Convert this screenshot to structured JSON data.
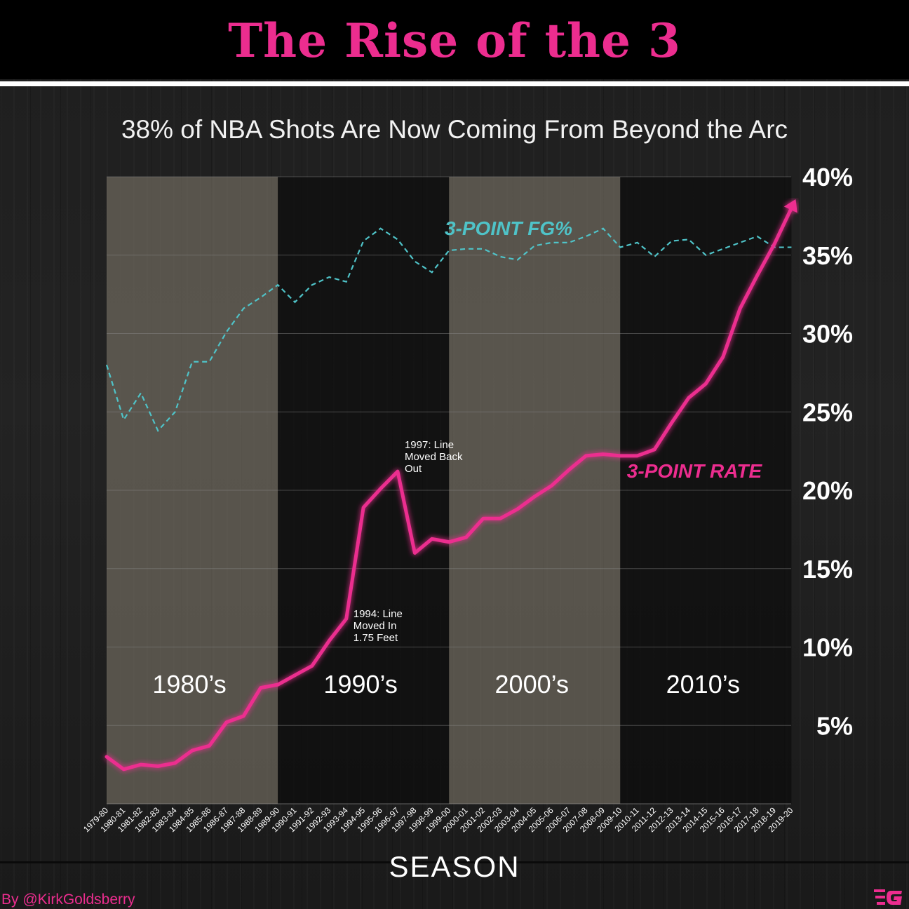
{
  "header": {
    "title": "The Rise of the 3",
    "subtitle": "38% of NBA Shots Are Now Coming From Beyond the Arc"
  },
  "footer": {
    "credit": "By @KirkGoldsberry",
    "logo": "g-logo-icon"
  },
  "colors": {
    "accent": "#ec2d8f",
    "fg_line": "#4fc3c8",
    "light_band": "#7a7467",
    "dark_band": "#0d0d0d",
    "background": "#1e1e1e"
  },
  "chart_data": {
    "type": "line",
    "title": "",
    "xlabel": "SEASON",
    "ylabel": "",
    "ylim": [
      0,
      40
    ],
    "y_ticks": [
      {
        "value": 5,
        "label": "5%"
      },
      {
        "value": 10,
        "label": "10%"
      },
      {
        "value": 15,
        "label": "15%"
      },
      {
        "value": 20,
        "label": "20%"
      },
      {
        "value": 25,
        "label": "25%"
      },
      {
        "value": 30,
        "label": "30%"
      },
      {
        "value": 35,
        "label": "35%"
      },
      {
        "value": 40,
        "label": "40%"
      }
    ],
    "y_axis_side": "right",
    "grid": true,
    "categories": [
      "1979-80",
      "1980-81",
      "1981-82",
      "1982-83",
      "1983-84",
      "1984-85",
      "1985-86",
      "1986-87",
      "1987-88",
      "1988-89",
      "1989-90",
      "1990-91",
      "1991-92",
      "1992-93",
      "1993-94",
      "1994-95",
      "1995-96",
      "1996-97",
      "1997-98",
      "1998-99",
      "1999-00",
      "2000-01",
      "2001-02",
      "2002-03",
      "2003-04",
      "2004-05",
      "2005-06",
      "2006-07",
      "2007-08",
      "2008-09",
      "2009-10",
      "2010-11",
      "2011-12",
      "2012-13",
      "2013-14",
      "2014-15",
      "2015-16",
      "2016-17",
      "2017-18",
      "2018-19",
      "2019-20"
    ],
    "series": [
      {
        "name": "3-POINT FG%",
        "style": "dashed",
        "color": "#4fc3c8",
        "values": [
          28.0,
          24.5,
          26.2,
          23.8,
          25.0,
          28.2,
          28.2,
          30.1,
          31.6,
          32.3,
          33.1,
          32.0,
          33.1,
          33.6,
          33.3,
          35.9,
          36.7,
          36.0,
          34.6,
          33.9,
          35.3,
          35.4,
          35.4,
          34.9,
          34.7,
          35.6,
          35.8,
          35.8,
          36.2,
          36.7,
          35.5,
          35.8,
          34.9,
          35.9,
          36.0,
          35.0,
          35.4,
          35.8,
          36.2,
          35.5,
          35.5
        ]
      },
      {
        "name": "3-POINT RATE",
        "style": "solid",
        "color": "#ec2d8f",
        "values": [
          3.0,
          2.2,
          2.5,
          2.4,
          2.6,
          3.4,
          3.7,
          5.2,
          5.6,
          7.4,
          7.6,
          8.2,
          8.8,
          10.4,
          11.8,
          18.9,
          20.1,
          21.2,
          16.0,
          16.9,
          16.7,
          17.0,
          18.2,
          18.2,
          18.8,
          19.6,
          20.3,
          21.3,
          22.2,
          22.3,
          22.2,
          22.2,
          22.6,
          24.3,
          25.9,
          26.8,
          28.5,
          31.6,
          33.7,
          35.7,
          38.0
        ]
      }
    ],
    "series_labels": [
      "3-POINT FG%",
      "3-POINT RATE"
    ],
    "decade_bands": [
      {
        "label": "1980’s",
        "from": "1979-80",
        "to": "1988-89",
        "shade": "light"
      },
      {
        "label": "1990’s",
        "from": "1989-90",
        "to": "1998-99",
        "shade": "dark"
      },
      {
        "label": "2000’s",
        "from": "1999-00",
        "to": "2008-09",
        "shade": "light"
      },
      {
        "label": "2010’s",
        "from": "2009-10",
        "to": "2018-19",
        "shade": "dark"
      },
      {
        "label": "",
        "from": "2019-20",
        "to": "2019-20",
        "shade": "light"
      }
    ],
    "annotations": [
      {
        "season": "1993-94",
        "lines": [
          "1994: Line",
          "Moved In",
          "1.75 Feet"
        ]
      },
      {
        "season": "1996-97",
        "lines": [
          "1997: Line",
          "Moved Back",
          "Out"
        ]
      }
    ],
    "x_tick_labels": [
      "1979-80",
      "1980-81",
      "1981-82",
      "1982-83",
      "1983-84",
      "1984-85",
      "1985-86",
      "1986-87",
      "1987-88",
      "1988-89",
      "1989-90",
      "1990-91",
      "1991-92",
      "1992-93",
      "1993-94",
      "1994-95",
      "1995-96",
      "1996-97",
      "1997-98",
      "1998-99",
      "1999-00",
      "2000-01",
      "2001-02",
      "2002-03",
      "2003-04",
      "2004-05",
      "2005-06",
      "2006-07",
      "2007-08",
      "2008-09",
      "2009-10",
      "2010-11",
      "2011-12",
      "2012-13",
      "2013-14",
      "2014-15",
      "2015-16",
      "2016-17",
      "2017-18",
      "2018-19",
      "2019-20"
    ]
  }
}
